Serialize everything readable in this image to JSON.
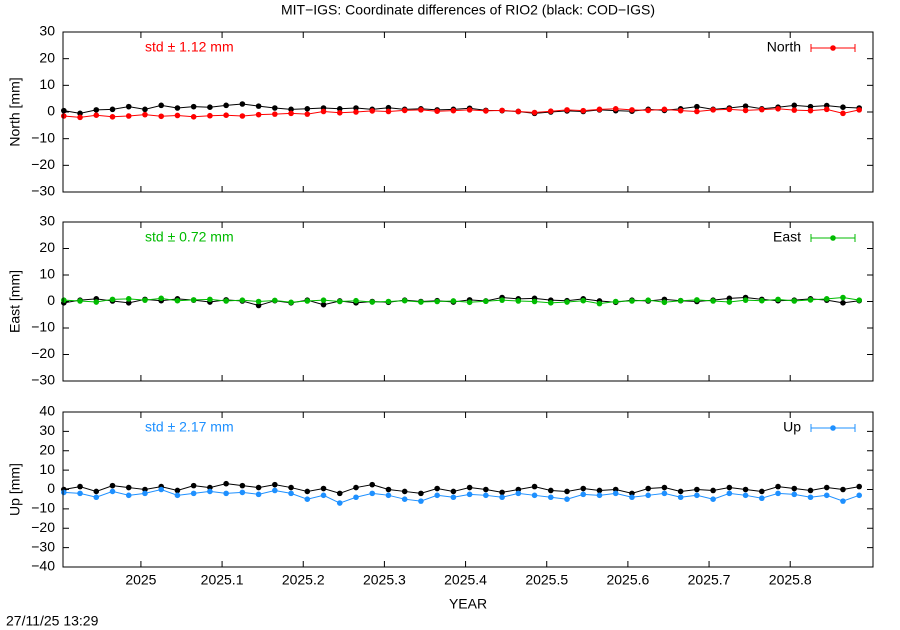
{
  "title": "MIT−IGS: Coordinate differences of RIO2 (black: COD−IGS)",
  "timestamp": "27/11/25 13:29",
  "chart_data": [
    {
      "type": "line",
      "ylabel": "North [mm]",
      "annotation": "std ± 1.12 mm",
      "legend": "top-right",
      "xlim": [
        2024.904,
        2025.902
      ],
      "ylim": [
        -30,
        30
      ],
      "xticks": [
        2025,
        2025.1,
        2025.2,
        2025.3,
        2025.4,
        2025.5,
        2025.6,
        2025.7,
        2025.8
      ],
      "yticks": [
        {
          "value": -30,
          "label": "−30"
        },
        {
          "value": -20,
          "label": "−20"
        },
        {
          "value": -10,
          "label": "−10"
        },
        0,
        10,
        20,
        30
      ],
      "x": [
        2024.905,
        2024.925,
        2024.945,
        2024.965,
        2024.985,
        2025.005,
        2025.025,
        2025.045,
        2025.065,
        2025.085,
        2025.105,
        2025.125,
        2025.145,
        2025.165,
        2025.185,
        2025.205,
        2025.225,
        2025.245,
        2025.265,
        2025.285,
        2025.305,
        2025.325,
        2025.345,
        2025.365,
        2025.385,
        2025.405,
        2025.425,
        2025.445,
        2025.465,
        2025.485,
        2025.505,
        2025.525,
        2025.545,
        2025.565,
        2025.585,
        2025.605,
        2025.625,
        2025.645,
        2025.665,
        2025.685,
        2025.705,
        2025.725,
        2025.745,
        2025.765,
        2025.785,
        2025.805,
        2025.825,
        2025.845,
        2025.865,
        2025.885
      ],
      "series": [
        {
          "color": "#000000",
          "values": [
            0.5,
            -0.5,
            0.8,
            1,
            2,
            1,
            2.5,
            1.5,
            2,
            1.8,
            2.5,
            3,
            2.2,
            1.5,
            1,
            1.2,
            1.5,
            1.2,
            1.5,
            1,
            1.6,
            1,
            1.2,
            0.8,
            1,
            1.4,
            0.6,
            0.5,
            0.2,
            -0.5,
            0,
            0.4,
            0.2,
            0.8,
            0.5,
            0.3,
            1,
            0.6,
            1.2,
            2,
            1,
            1.5,
            2.2,
            1.2,
            1.8,
            2.5,
            2,
            2.4,
            1.8,
            1.5
          ]
        },
        {
          "name": "North",
          "color": "#ff0000",
          "values": [
            -1.5,
            -2,
            -1.2,
            -1.8,
            -1.5,
            -1,
            -1.6,
            -1.3,
            -1.8,
            -1.4,
            -1.2,
            -1.5,
            -1,
            -0.8,
            -0.5,
            -0.8,
            0.2,
            -0.3,
            0,
            0.4,
            0.2,
            0.6,
            0.8,
            0.3,
            0.5,
            0.8,
            0.4,
            0.6,
            0.2,
            -0.2,
            0.3,
            0.8,
            0.5,
            1,
            1.2,
            0.8,
            0.6,
            1,
            0.5,
            0.2,
            0.8,
            1,
            0.6,
            0.9,
            1.2,
            0.7,
            0.5,
            1,
            -0.5,
            0.8
          ]
        }
      ]
    },
    {
      "type": "line",
      "ylabel": "East [mm]",
      "annotation": "std ± 0.72 mm",
      "legend": "top-right",
      "xlim": [
        2024.904,
        2025.902
      ],
      "ylim": [
        -30,
        30
      ],
      "xticks": [
        2025,
        2025.1,
        2025.2,
        2025.3,
        2025.4,
        2025.5,
        2025.6,
        2025.7,
        2025.8
      ],
      "yticks": [
        {
          "value": -30,
          "label": "−30"
        },
        {
          "value": -20,
          "label": "−20"
        },
        {
          "value": -10,
          "label": "−10"
        },
        0,
        10,
        20,
        30
      ],
      "x": [
        2024.905,
        2024.925,
        2024.945,
        2024.965,
        2024.985,
        2025.005,
        2025.025,
        2025.045,
        2025.065,
        2025.085,
        2025.105,
        2025.125,
        2025.145,
        2025.165,
        2025.185,
        2025.205,
        2025.225,
        2025.245,
        2025.265,
        2025.285,
        2025.305,
        2025.325,
        2025.345,
        2025.365,
        2025.385,
        2025.405,
        2025.425,
        2025.445,
        2025.465,
        2025.485,
        2025.505,
        2025.525,
        2025.545,
        2025.565,
        2025.585,
        2025.605,
        2025.625,
        2025.645,
        2025.665,
        2025.685,
        2025.705,
        2025.725,
        2025.745,
        2025.765,
        2025.785,
        2025.805,
        2025.825,
        2025.845,
        2025.865,
        2025.885
      ],
      "series": [
        {
          "color": "#000000",
          "values": [
            -0.5,
            0.5,
            1,
            0.2,
            -0.5,
            0.8,
            0.3,
            1,
            0.5,
            -0.2,
            0.6,
            0.2,
            -1.5,
            0.3,
            -0.5,
            0.5,
            -1.2,
            0.2,
            -0.5,
            0,
            -0.3,
            0.5,
            0,
            0.3,
            -0.2,
            0.6,
            0.2,
            1.5,
            1,
            1.2,
            0.5,
            0.3,
            1,
            0.2,
            -0.3,
            0.5,
            0.2,
            0.8,
            0.3,
            0,
            0.5,
            1.2,
            1.5,
            0.8,
            0.3,
            0.5,
            1,
            0.5,
            -0.5,
            0.3
          ]
        },
        {
          "name": "East",
          "color": "#00bb00",
          "values": [
            0.5,
            0.2,
            -0.2,
            0.8,
            1,
            0.5,
            1.2,
            0.3,
            0.6,
            0.8,
            0.2,
            0.5,
            0,
            0.4,
            -0.3,
            0.2,
            0.5,
            0,
            0.3,
            -0.2,
            0,
            0.3,
            -0.2,
            0,
            0.2,
            -0.3,
            0.1,
            0.5,
            0.2,
            0,
            -0.5,
            -0.2,
            0.3,
            -0.8,
            0,
            0.2,
            0.5,
            -0.3,
            0.3,
            0.6,
            0.2,
            -0.2,
            0.5,
            0.3,
            0.8,
            0.2,
            0.6,
            1,
            1.5,
            0.5
          ]
        }
      ]
    },
    {
      "type": "line",
      "ylabel": "Up [mm]",
      "xlabel": "YEAR",
      "annotation": "std ± 2.17 mm",
      "legend": "top-right",
      "xlim": [
        2024.904,
        2025.902
      ],
      "ylim": [
        -40,
        40
      ],
      "xticks": [
        2025,
        2025.1,
        2025.2,
        2025.3,
        2025.4,
        2025.5,
        2025.6,
        2025.7,
        2025.8
      ],
      "yticks": [
        {
          "value": -40,
          "label": "−40"
        },
        {
          "value": -30,
          "label": "−30"
        },
        {
          "value": -20,
          "label": "−20"
        },
        {
          "value": -10,
          "label": "−10"
        },
        0,
        10,
        20,
        30,
        40
      ],
      "x": [
        2024.905,
        2024.925,
        2024.945,
        2024.965,
        2024.985,
        2025.005,
        2025.025,
        2025.045,
        2025.065,
        2025.085,
        2025.105,
        2025.125,
        2025.145,
        2025.165,
        2025.185,
        2025.205,
        2025.225,
        2025.245,
        2025.265,
        2025.285,
        2025.305,
        2025.325,
        2025.345,
        2025.365,
        2025.385,
        2025.405,
        2025.425,
        2025.445,
        2025.465,
        2025.485,
        2025.505,
        2025.525,
        2025.545,
        2025.565,
        2025.585,
        2025.605,
        2025.625,
        2025.645,
        2025.665,
        2025.685,
        2025.705,
        2025.725,
        2025.745,
        2025.765,
        2025.785,
        2025.805,
        2025.825,
        2025.845,
        2025.865,
        2025.885
      ],
      "series": [
        {
          "color": "#000000",
          "values": [
            0,
            1.5,
            -1,
            2,
            1,
            0,
            1.5,
            -0.5,
            2,
            1,
            3,
            2,
            1,
            2.5,
            1,
            -1,
            0.5,
            -2,
            1,
            2.5,
            0,
            -1,
            -2,
            0.5,
            -1,
            1,
            0,
            -1.5,
            0,
            1.5,
            -0.5,
            -1,
            0.5,
            -0.5,
            0,
            -2,
            0.5,
            1,
            -1,
            0,
            -0.5,
            1,
            0,
            -1,
            1.5,
            0.5,
            -0.5,
            1,
            0,
            1.5
          ]
        },
        {
          "name": "Up",
          "color": "#1e90ff",
          "values": [
            -1.5,
            -2,
            -4,
            -1,
            -3,
            -2,
            0,
            -3,
            -2,
            -1,
            -2,
            -1.5,
            -2.5,
            -0.5,
            -2,
            -5,
            -3,
            -7,
            -4,
            -2,
            -3,
            -5,
            -6,
            -3,
            -4,
            -2.5,
            -3,
            -4,
            -2,
            -3,
            -4,
            -5,
            -2.5,
            -3,
            -2,
            -4,
            -3,
            -2,
            -4,
            -3,
            -5,
            -2,
            -3,
            -4.5,
            -2,
            -2.5,
            -4,
            -3,
            -6,
            -3
          ]
        }
      ]
    }
  ]
}
